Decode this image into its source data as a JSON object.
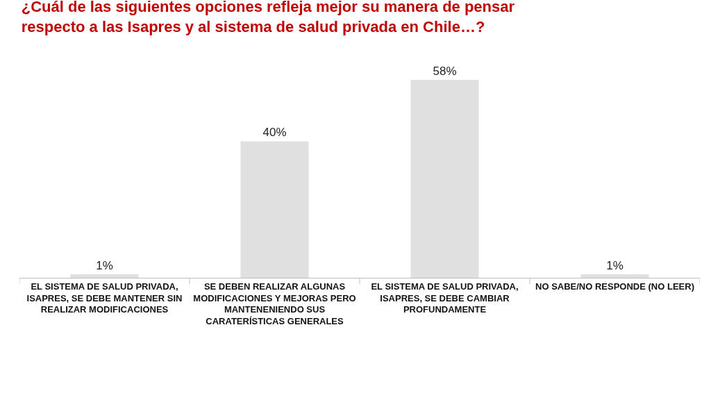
{
  "chart_data": {
    "type": "bar",
    "title": "¿Cuál de las siguientes opciones refleja mejor su manera de pensar respecto a las Isapres y al sistema de salud privada en Chile…?",
    "categories": [
      "EL SISTEMA DE SALUD PRIVADA, ISAPRES, SE DEBE MANTENER SIN REALIZAR MODIFICACIONES",
      "SE DEBEN REALIZAR ALGUNAS MODIFICACIONES Y MEJORAS PERO MANTENENIENDO SUS CARATERÍSTICAS GENERALES",
      "EL SISTEMA DE SALUD PRIVADA, ISAPRES, SE DEBE CAMBIAR PROFUNDAMENTE",
      "NO SABE/NO RESPONDE (NO LEER)"
    ],
    "values": [
      1,
      40,
      58,
      1
    ],
    "value_labels": [
      "1%",
      "40%",
      "58%",
      "1%"
    ],
    "color": "#e0e0e0",
    "grid": false
  }
}
